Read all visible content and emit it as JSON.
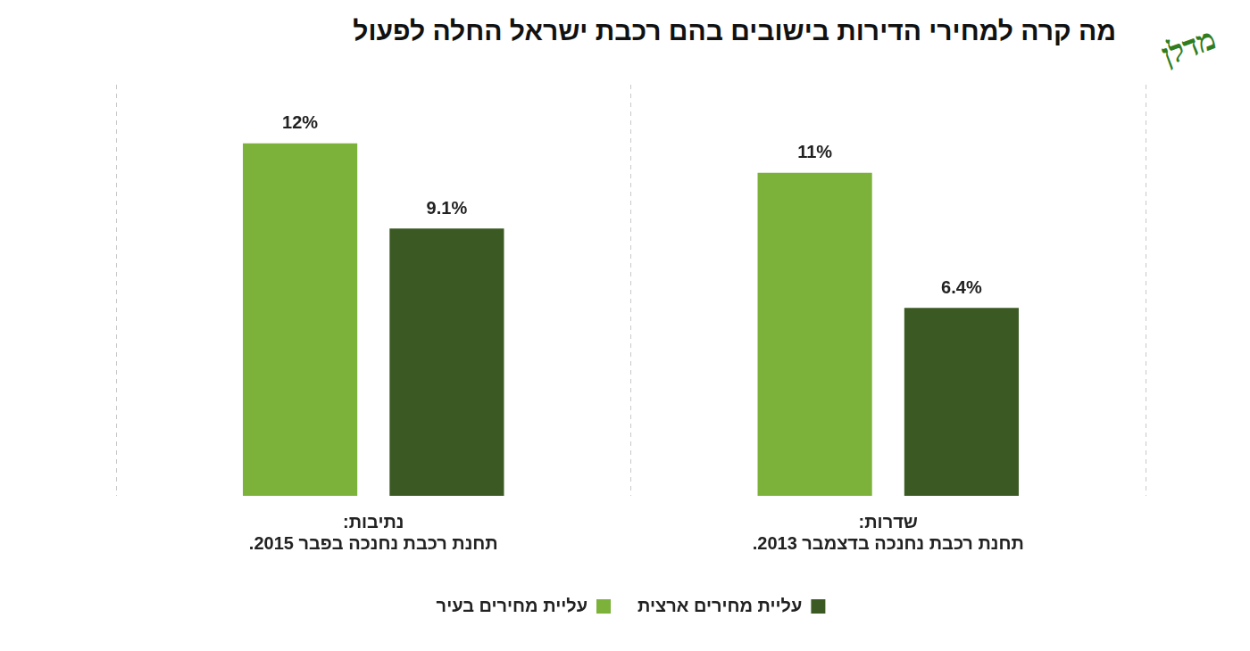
{
  "header": {
    "logo": "מדלן"
  },
  "chart_data": {
    "type": "bar",
    "title": "מה קרה למחירי הדירות בישובים בהם רכבת ישראל החלה לפעול",
    "categories": [
      "נתיבות: תחנת רכבת נחנכה בפבר 2015.",
      "שדרות: תחנת רכבת נחנכה בדצמבר 2013."
    ],
    "series": [
      {
        "name": "עליית מחירים בעיר",
        "color": "#7cb13a",
        "values": [
          12,
          11
        ],
        "value_labels": [
          "12%",
          "11%"
        ]
      },
      {
        "name": "עליית מחירים ארצית",
        "color": "#3b5a23",
        "values": [
          9.1,
          6.4
        ],
        "value_labels": [
          "9.1%",
          "6.4%"
        ]
      }
    ],
    "ylim": [
      0,
      14
    ],
    "yticks": [],
    "grid": "x",
    "legend": "bottom",
    "data_labels": true,
    "tick_labels": "x"
  }
}
